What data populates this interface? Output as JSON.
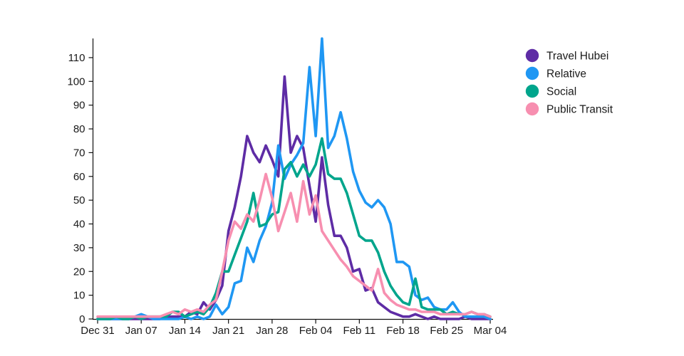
{
  "page": {
    "background": "#ffffff",
    "text_color": "#1a1a1a",
    "axis_color": "#111111"
  },
  "legend": {
    "items": [
      "Travel Hubei",
      "Relative",
      "Social",
      "Public Transit"
    ]
  },
  "chart_data": {
    "type": "line",
    "title": "",
    "xlabel": "",
    "ylabel": "",
    "grid": false,
    "legend_position": "top-right",
    "ylim": [
      0,
      120
    ],
    "y_tick_labels": [
      "0",
      "10",
      "20",
      "30",
      "40",
      "50",
      "60",
      "70",
      "80",
      "90",
      "100",
      "110"
    ],
    "x_tick_labels": [
      "Dec 31",
      "Jan 07",
      "Jan 14",
      "Jan 21",
      "Jan 28",
      "Feb 04",
      "Feb 11",
      "Feb 18",
      "Feb 25",
      "Mar 04"
    ],
    "x_tick_indices": [
      0,
      7,
      14,
      21,
      28,
      35,
      42,
      49,
      56,
      63
    ],
    "x_start_label": "Dec 31",
    "x_end_label": "Mar 04",
    "points_per_series": 64,
    "series": [
      {
        "name": "Travel Hubei",
        "color": "#5e2ca5",
        "values": [
          0,
          0,
          0,
          0,
          0,
          0,
          0,
          0,
          0,
          0,
          0,
          1,
          1,
          1,
          1,
          3,
          2,
          7,
          4,
          8,
          14,
          37,
          47,
          60,
          77,
          70,
          66,
          73,
          67,
          60,
          102,
          70,
          77,
          72,
          56,
          41,
          68,
          48,
          35,
          35,
          30,
          20,
          21,
          12,
          13,
          7,
          5,
          3,
          2,
          1,
          1,
          2,
          1,
          0,
          1,
          0,
          0,
          0,
          0,
          1,
          0,
          0,
          0,
          0
        ]
      },
      {
        "name": "Relative",
        "color": "#1f97f3",
        "values": [
          0,
          0,
          0,
          0,
          0,
          0,
          1,
          2,
          1,
          0,
          0,
          0,
          0,
          0,
          1,
          0,
          1,
          0,
          1,
          6,
          2,
          5,
          15,
          16,
          30,
          24,
          33,
          39,
          49,
          73,
          59,
          65,
          69,
          74,
          106,
          77,
          118,
          72,
          77,
          87,
          76,
          62,
          54,
          49,
          47,
          50,
          47,
          40,
          24,
          24,
          22,
          10,
          8,
          9,
          5,
          4,
          4,
          7,
          3,
          1,
          1,
          1,
          1,
          0
        ]
      },
      {
        "name": "Social",
        "color": "#00a58c",
        "values": [
          0,
          0,
          0,
          1,
          0,
          0,
          1,
          0,
          1,
          1,
          1,
          1,
          3,
          3,
          1,
          2,
          3,
          2,
          5,
          11,
          20,
          20,
          27,
          34,
          41,
          53,
          39,
          40,
          44,
          45,
          63,
          66,
          60,
          65,
          60,
          65,
          76,
          61,
          59,
          59,
          53,
          44,
          35,
          33,
          33,
          28,
          20,
          14,
          10,
          7,
          6,
          17,
          5,
          4,
          4,
          4,
          2,
          3,
          2,
          2,
          3,
          2,
          2,
          1
        ]
      },
      {
        "name": "Public Transit",
        "color": "#f78fb0",
        "values": [
          1,
          1,
          1,
          1,
          1,
          1,
          1,
          1,
          1,
          1,
          1,
          2,
          3,
          2,
          4,
          3,
          4,
          3,
          6,
          8,
          20,
          33,
          41,
          38,
          44,
          41,
          50,
          61,
          51,
          37,
          45,
          53,
          41,
          58,
          44,
          52,
          37,
          33,
          29,
          25,
          22,
          18,
          16,
          14,
          12,
          21,
          11,
          8,
          6,
          5,
          4,
          4,
          3,
          3,
          3,
          2,
          2,
          2,
          2,
          2,
          3,
          2,
          2,
          1
        ]
      }
    ]
  }
}
